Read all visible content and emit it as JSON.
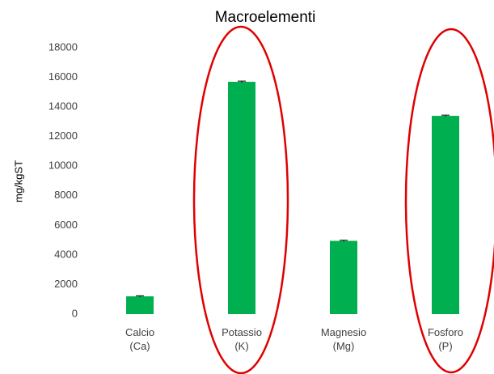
{
  "chart_data": {
    "type": "bar",
    "title": "Macroelementi",
    "y_label": "mg/kgST",
    "categories": [
      "Calcio\n(Ca)",
      "Potassio\n(K)",
      "Magnesio\n(Mg)",
      "Fosforo\n(P)"
    ],
    "values": [
      1200,
      15700,
      4950,
      13400
    ],
    "errors": [
      40,
      50,
      40,
      50
    ],
    "color": "#00b050",
    "ylim": [
      0,
      18000
    ],
    "yticks": [
      0,
      2000,
      4000,
      6000,
      8000,
      10000,
      12000,
      14000,
      16000,
      18000
    ],
    "grid": false
  }
}
